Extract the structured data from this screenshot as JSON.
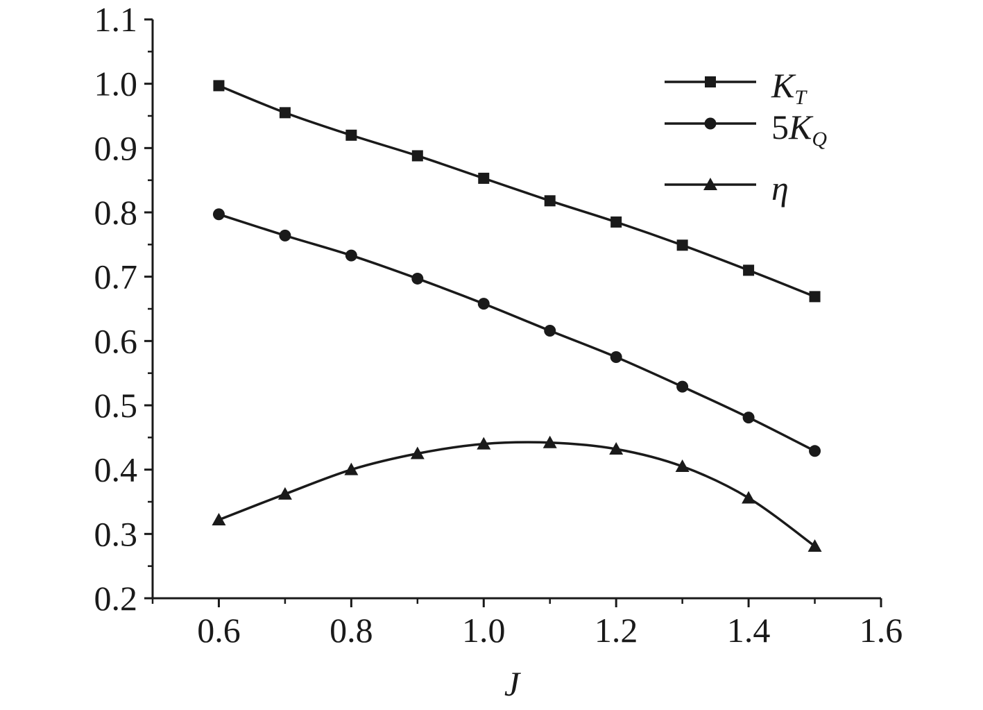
{
  "chart_data": {
    "type": "line",
    "title": "",
    "xlabel": "J",
    "ylabel": "",
    "xlim": [
      0.5,
      1.6
    ],
    "ylim": [
      0.2,
      1.1
    ],
    "x_ticks": [
      0.6,
      0.8,
      1.0,
      1.2,
      1.4,
      1.6
    ],
    "x_tick_labels": [
      "0.6",
      "0.8",
      "1.0",
      "1.2",
      "1.4",
      "1.6"
    ],
    "y_ticks": [
      0.2,
      0.3,
      0.4,
      0.5,
      0.6,
      0.7,
      0.8,
      0.9,
      1.0,
      1.1
    ],
    "y_tick_labels": [
      "0.2",
      "0.3",
      "0.4",
      "0.5",
      "0.6",
      "0.7",
      "0.8",
      "0.9",
      "1.0",
      "1.1"
    ],
    "grid": false,
    "legend_position": "top-right",
    "x": [
      0.6,
      0.7,
      0.8,
      0.9,
      1.0,
      1.1,
      1.2,
      1.3,
      1.4,
      1.5
    ],
    "series": [
      {
        "name": "KT",
        "label_main": "K",
        "label_sub": "T",
        "marker": "square",
        "values": [
          0.997,
          0.955,
          0.92,
          0.888,
          0.853,
          0.818,
          0.785,
          0.749,
          0.71,
          0.669
        ]
      },
      {
        "name": "5KQ",
        "label_prefix": "5",
        "label_main": "K",
        "label_sub": "Q",
        "marker": "circle",
        "values": [
          0.797,
          0.764,
          0.733,
          0.697,
          0.658,
          0.616,
          0.575,
          0.529,
          0.481,
          0.429
        ]
      },
      {
        "name": "η",
        "label_main": "η",
        "label_sub": "",
        "marker": "triangle",
        "values": [
          0.322,
          0.362,
          0.4,
          0.425,
          0.44,
          0.442,
          0.432,
          0.405,
          0.356,
          0.281
        ]
      }
    ]
  },
  "colors": {
    "ink": "#1a1a1a",
    "background": "#ffffff"
  }
}
